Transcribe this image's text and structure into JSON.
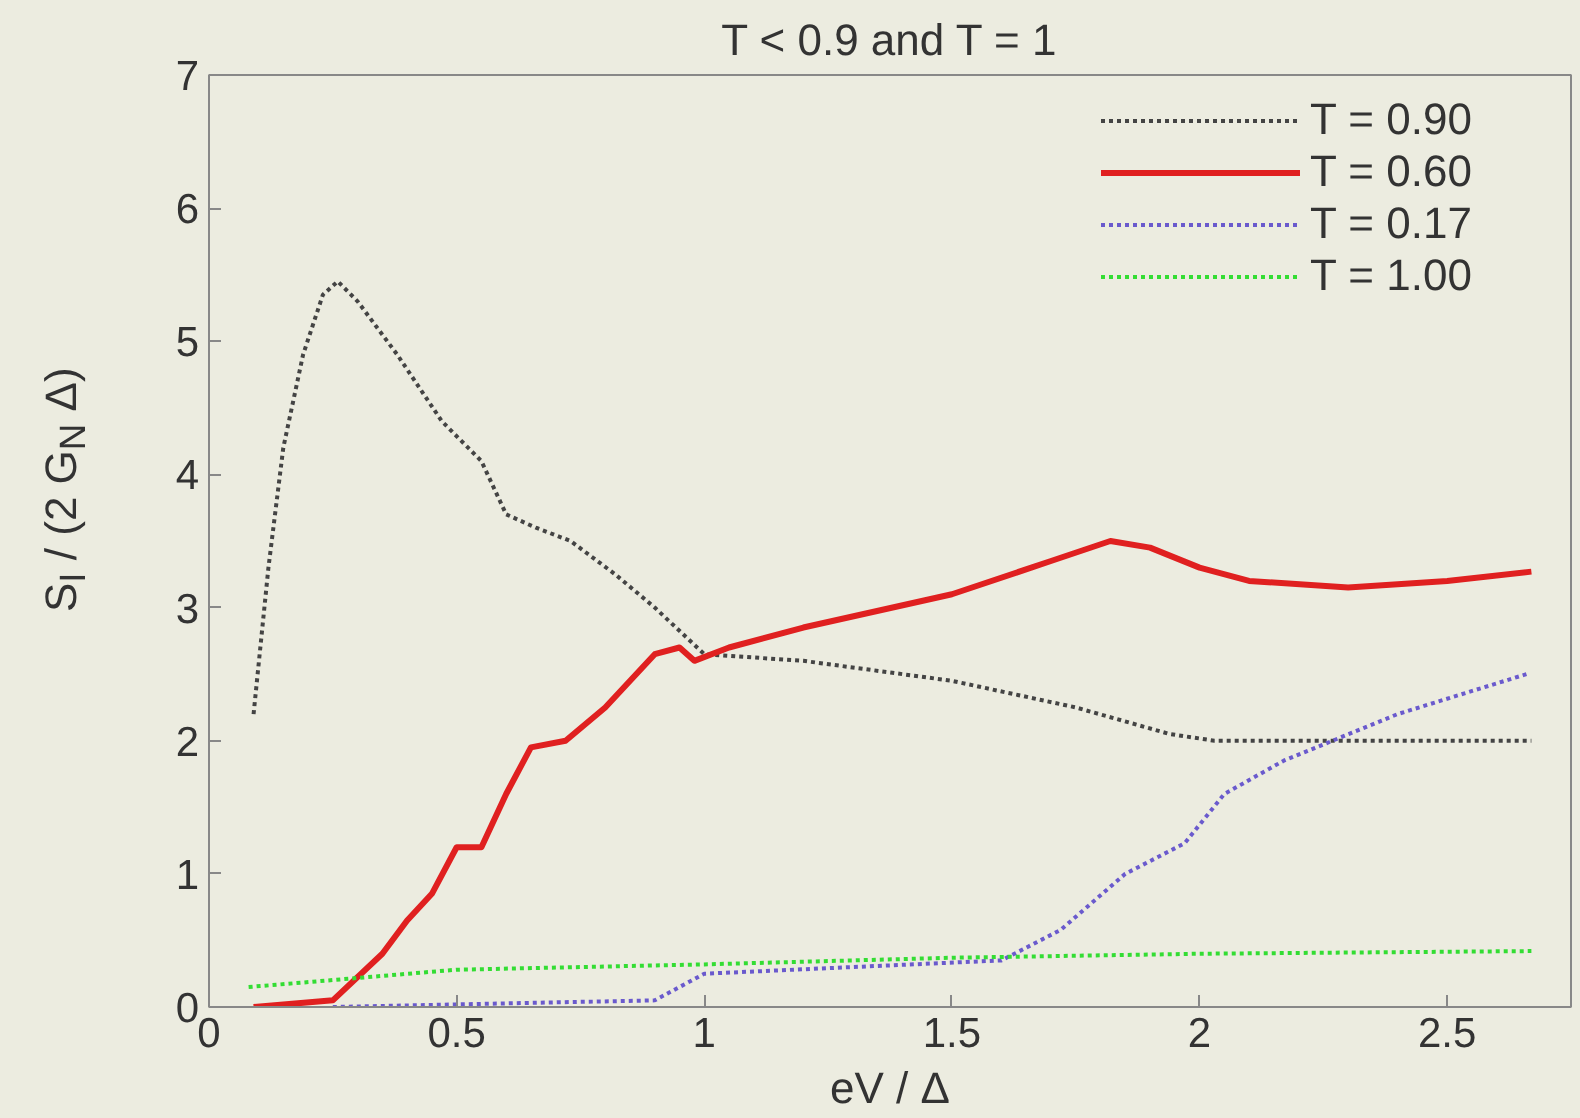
{
  "chart_data": {
    "type": "line",
    "title": "T < 0.9 and T = 1",
    "xlabel": "eV / Δ",
    "ylabel": "S$_{I}$ / (2 G$_{N}$ Δ)",
    "xlim": [
      0,
      2.75
    ],
    "xticks": [
      0,
      0.5,
      1,
      1.5,
      2,
      2.5
    ],
    "ylim": [
      0,
      7
    ],
    "yticks": [
      0,
      1,
      2,
      3,
      4,
      5,
      6,
      7
    ],
    "grid": false,
    "legend": "top right",
    "series": [
      {
        "name": "T = 0.90",
        "color": "#444444",
        "line_style": "dotted",
        "x": [
          0.09,
          0.12,
          0.15,
          0.19,
          0.23,
          0.26,
          0.3,
          0.38,
          0.47,
          0.55,
          0.6,
          0.66,
          0.73,
          0.82,
          0.9,
          1.0,
          1.2,
          1.5,
          1.75,
          1.94,
          2.03,
          2.3,
          2.67
        ],
        "values": [
          2.2,
          3.3,
          4.2,
          4.9,
          5.35,
          5.45,
          5.3,
          4.9,
          4.4,
          4.1,
          3.7,
          3.6,
          3.5,
          3.25,
          3.0,
          2.65,
          2.6,
          2.45,
          2.25,
          2.05,
          2.0,
          2.0,
          2.0
        ]
      },
      {
        "name": "T = 0.60",
        "color": "#e02020",
        "line_style": "solid",
        "x": [
          0.09,
          0.25,
          0.35,
          0.4,
          0.45,
          0.5,
          0.55,
          0.6,
          0.65,
          0.72,
          0.8,
          0.9,
          0.95,
          0.98,
          1.05,
          1.2,
          1.5,
          1.7,
          1.82,
          1.9,
          2.0,
          2.1,
          2.3,
          2.5,
          2.67
        ],
        "values": [
          0.0,
          0.05,
          0.4,
          0.65,
          0.85,
          1.2,
          1.2,
          1.6,
          1.95,
          2.0,
          2.25,
          2.65,
          2.7,
          2.6,
          2.7,
          2.85,
          3.1,
          3.35,
          3.5,
          3.45,
          3.3,
          3.2,
          3.15,
          3.2,
          3.27
        ]
      },
      {
        "name": "T = 0.17",
        "color": "#6a5acd",
        "line_style": "dotted",
        "x": [
          0.25,
          0.9,
          1.0,
          1.3,
          1.6,
          1.72,
          1.85,
          1.97,
          2.05,
          2.17,
          2.4,
          2.66
        ],
        "values": [
          0.0,
          0.05,
          0.25,
          0.3,
          0.35,
          0.58,
          1.0,
          1.23,
          1.6,
          1.85,
          2.2,
          2.5
        ]
      },
      {
        "name": "T = 1.00",
        "color": "#33dd33",
        "line_style": "dotted",
        "x": [
          0.08,
          0.5,
          1.0,
          1.5,
          2.0,
          2.67
        ],
        "values": [
          0.15,
          0.28,
          0.32,
          0.37,
          0.4,
          0.42
        ]
      }
    ]
  }
}
